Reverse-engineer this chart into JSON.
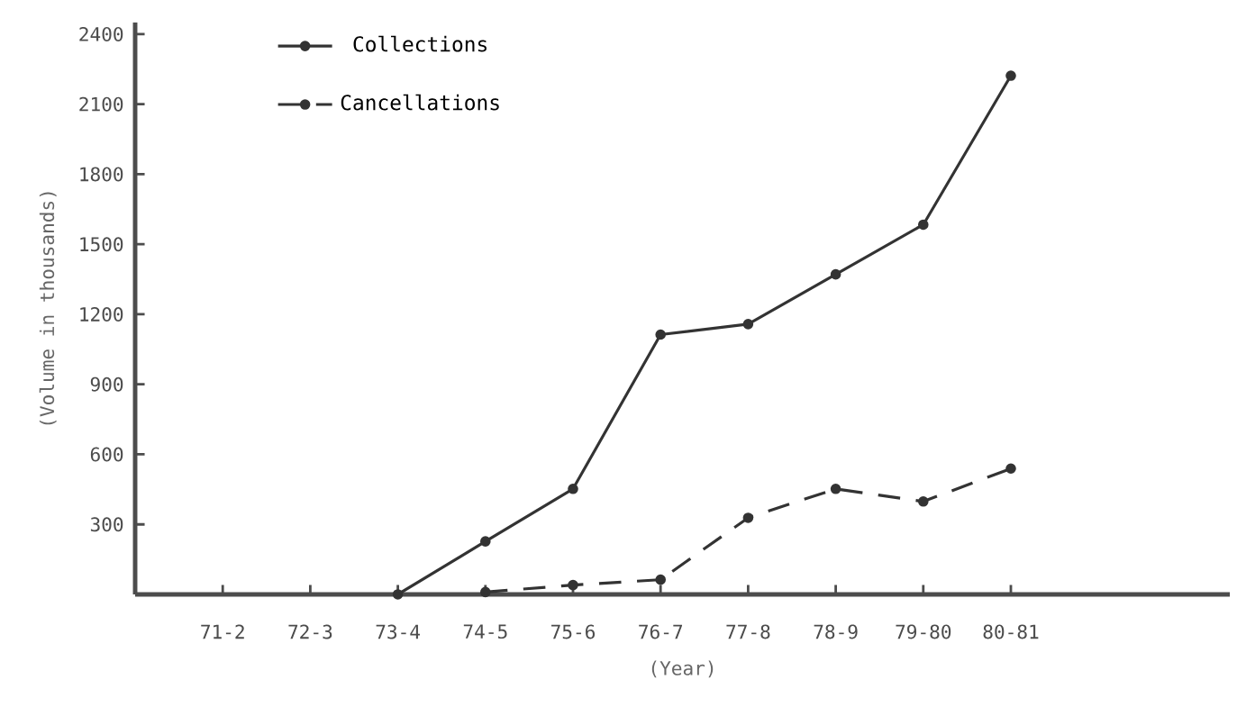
{
  "chart_data": {
    "type": "line",
    "xlabel": "(Year)",
    "ylabel": "(Volume in thousands)",
    "categories": [
      "71-2",
      "72-3",
      "73-4",
      "74-5",
      "75-6",
      "76-7",
      "77-8",
      "78-9",
      "79-80",
      "80-81"
    ],
    "series": [
      {
        "name": "Collections",
        "color": "#333333",
        "line_style": "solid",
        "values": [
          null,
          null,
          0,
          227,
          452,
          1113,
          1158,
          1371,
          1584,
          2222
        ]
      },
      {
        "name": "Cancellations",
        "color": "#333333",
        "line_style": "dashed",
        "values": [
          null,
          null,
          null,
          10,
          40,
          63,
          328,
          452,
          398,
          539
        ]
      }
    ],
    "ylim": [
      0,
      2450
    ],
    "yticks": [
      {
        "value": 0,
        "label": null
      },
      300,
      600,
      900,
      1200,
      1500,
      1800,
      2100,
      2400
    ],
    "marker": "circle",
    "grid": false,
    "legend": "top left"
  }
}
